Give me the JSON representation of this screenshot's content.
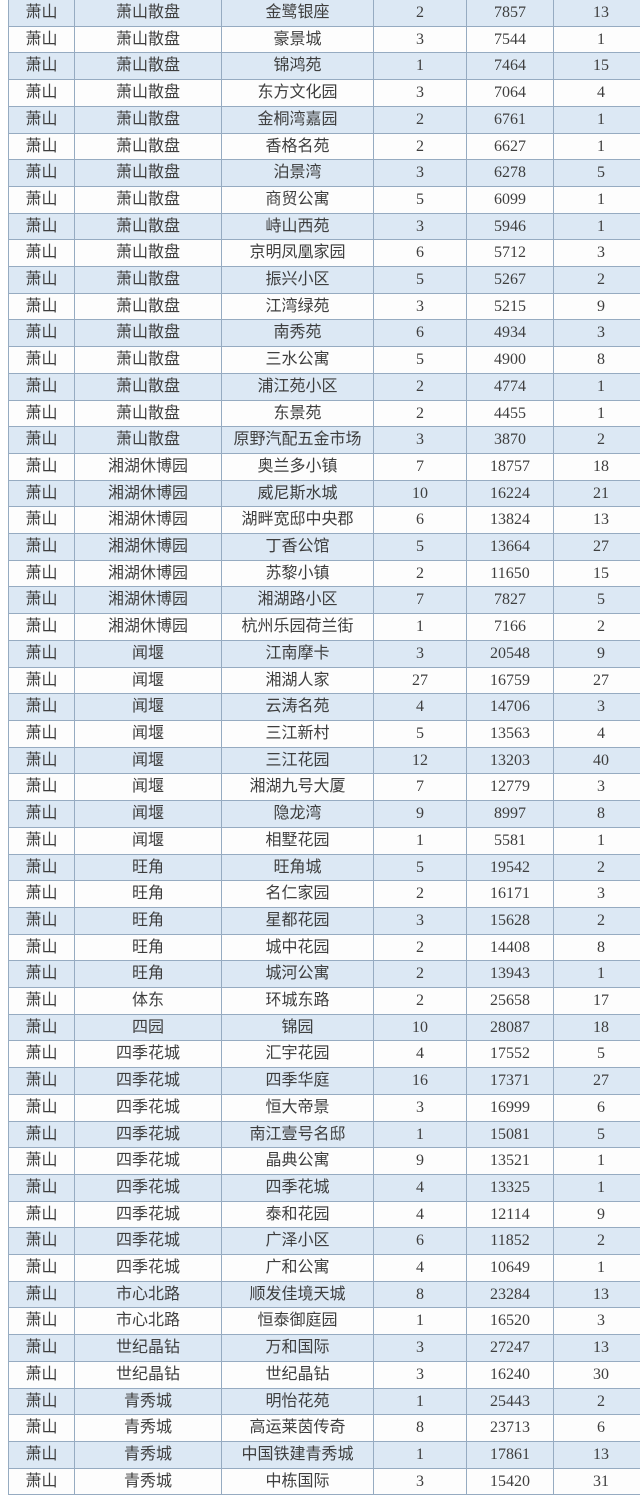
{
  "colors": {
    "page_bg": "#ffffff",
    "row_alt_bg": "#dce8f4",
    "row_bg": "#fdfdfd",
    "border": "#96abc1",
    "text": "#3e3e3e"
  },
  "chart_data": {
    "type": "table",
    "header_visible": false,
    "rows": [
      [
        "萧山",
        "萧山散盘",
        "金鹭银座",
        "2",
        "7857",
        "13"
      ],
      [
        "萧山",
        "萧山散盘",
        "豪景城",
        "3",
        "7544",
        "1"
      ],
      [
        "萧山",
        "萧山散盘",
        "锦鸿苑",
        "1",
        "7464",
        "15"
      ],
      [
        "萧山",
        "萧山散盘",
        "东方文化园",
        "3",
        "7064",
        "4"
      ],
      [
        "萧山",
        "萧山散盘",
        "金桐湾嘉园",
        "2",
        "6761",
        "1"
      ],
      [
        "萧山",
        "萧山散盘",
        "香格名苑",
        "2",
        "6627",
        "1"
      ],
      [
        "萧山",
        "萧山散盘",
        "泊景湾",
        "3",
        "6278",
        "5"
      ],
      [
        "萧山",
        "萧山散盘",
        "商贸公寓",
        "5",
        "6099",
        "1"
      ],
      [
        "萧山",
        "萧山散盘",
        "峙山西苑",
        "3",
        "5946",
        "1"
      ],
      [
        "萧山",
        "萧山散盘",
        "京明凤凰家园",
        "6",
        "5712",
        "3"
      ],
      [
        "萧山",
        "萧山散盘",
        "振兴小区",
        "5",
        "5267",
        "2"
      ],
      [
        "萧山",
        "萧山散盘",
        "江湾绿苑",
        "3",
        "5215",
        "9"
      ],
      [
        "萧山",
        "萧山散盘",
        "南秀苑",
        "6",
        "4934",
        "3"
      ],
      [
        "萧山",
        "萧山散盘",
        "三水公寓",
        "5",
        "4900",
        "8"
      ],
      [
        "萧山",
        "萧山散盘",
        "浦江苑小区",
        "2",
        "4774",
        "1"
      ],
      [
        "萧山",
        "萧山散盘",
        "东景苑",
        "2",
        "4455",
        "1"
      ],
      [
        "萧山",
        "萧山散盘",
        "原野汽配五金市场",
        "3",
        "3870",
        "2"
      ],
      [
        "萧山",
        "湘湖休博园",
        "奥兰多小镇",
        "7",
        "18757",
        "18"
      ],
      [
        "萧山",
        "湘湖休博园",
        "威尼斯水城",
        "10",
        "16224",
        "21"
      ],
      [
        "萧山",
        "湘湖休博园",
        "湖畔宽邸中央郡",
        "6",
        "13824",
        "13"
      ],
      [
        "萧山",
        "湘湖休博园",
        "丁香公馆",
        "5",
        "13664",
        "27"
      ],
      [
        "萧山",
        "湘湖休博园",
        "苏黎小镇",
        "2",
        "11650",
        "15"
      ],
      [
        "萧山",
        "湘湖休博园",
        "湘湖路小区",
        "7",
        "7827",
        "5"
      ],
      [
        "萧山",
        "湘湖休博园",
        "杭州乐园荷兰街",
        "1",
        "7166",
        "2"
      ],
      [
        "萧山",
        "闻堰",
        "江南摩卡",
        "3",
        "20548",
        "9"
      ],
      [
        "萧山",
        "闻堰",
        "湘湖人家",
        "27",
        "16759",
        "27"
      ],
      [
        "萧山",
        "闻堰",
        "云涛名苑",
        "4",
        "14706",
        "3"
      ],
      [
        "萧山",
        "闻堰",
        "三江新村",
        "5",
        "13563",
        "4"
      ],
      [
        "萧山",
        "闻堰",
        "三江花园",
        "12",
        "13203",
        "40"
      ],
      [
        "萧山",
        "闻堰",
        "湘湖九号大厦",
        "7",
        "12779",
        "3"
      ],
      [
        "萧山",
        "闻堰",
        "隐龙湾",
        "9",
        "8997",
        "8"
      ],
      [
        "萧山",
        "闻堰",
        "相墅花园",
        "1",
        "5581",
        "1"
      ],
      [
        "萧山",
        "旺角",
        "旺角城",
        "5",
        "19542",
        "2"
      ],
      [
        "萧山",
        "旺角",
        "名仁家园",
        "2",
        "16171",
        "3"
      ],
      [
        "萧山",
        "旺角",
        "星都花园",
        "3",
        "15628",
        "2"
      ],
      [
        "萧山",
        "旺角",
        "城中花园",
        "2",
        "14408",
        "8"
      ],
      [
        "萧山",
        "旺角",
        "城河公寓",
        "2",
        "13943",
        "1"
      ],
      [
        "萧山",
        "体东",
        "环城东路",
        "2",
        "25658",
        "17"
      ],
      [
        "萧山",
        "四园",
        "锦园",
        "10",
        "28087",
        "18"
      ],
      [
        "萧山",
        "四季花城",
        "汇宇花园",
        "4",
        "17552",
        "5"
      ],
      [
        "萧山",
        "四季花城",
        "四季华庭",
        "16",
        "17371",
        "27"
      ],
      [
        "萧山",
        "四季花城",
        "恒大帝景",
        "3",
        "16999",
        "6"
      ],
      [
        "萧山",
        "四季花城",
        "南江壹号名邸",
        "1",
        "15081",
        "5"
      ],
      [
        "萧山",
        "四季花城",
        "晶典公寓",
        "9",
        "13521",
        "1"
      ],
      [
        "萧山",
        "四季花城",
        "四季花城",
        "4",
        "13325",
        "1"
      ],
      [
        "萧山",
        "四季花城",
        "泰和花园",
        "4",
        "12114",
        "9"
      ],
      [
        "萧山",
        "四季花城",
        "广泽小区",
        "6",
        "11852",
        "2"
      ],
      [
        "萧山",
        "四季花城",
        "广和公寓",
        "4",
        "10649",
        "1"
      ],
      [
        "萧山",
        "市心北路",
        "顺发佳境天城",
        "8",
        "23284",
        "13"
      ],
      [
        "萧山",
        "市心北路",
        "恒泰御庭园",
        "1",
        "16520",
        "3"
      ],
      [
        "萧山",
        "世纪晶钻",
        "万和国际",
        "3",
        "27247",
        "13"
      ],
      [
        "萧山",
        "世纪晶钻",
        "世纪晶钻",
        "3",
        "16240",
        "30"
      ],
      [
        "萧山",
        "青秀城",
        "明怡花苑",
        "1",
        "25443",
        "2"
      ],
      [
        "萧山",
        "青秀城",
        "高运莱茵传奇",
        "8",
        "23713",
        "6"
      ],
      [
        "萧山",
        "青秀城",
        "中国铁建青秀城",
        "1",
        "17861",
        "13"
      ],
      [
        "萧山",
        "青秀城",
        "中栋国际",
        "3",
        "15420",
        "31"
      ]
    ]
  }
}
